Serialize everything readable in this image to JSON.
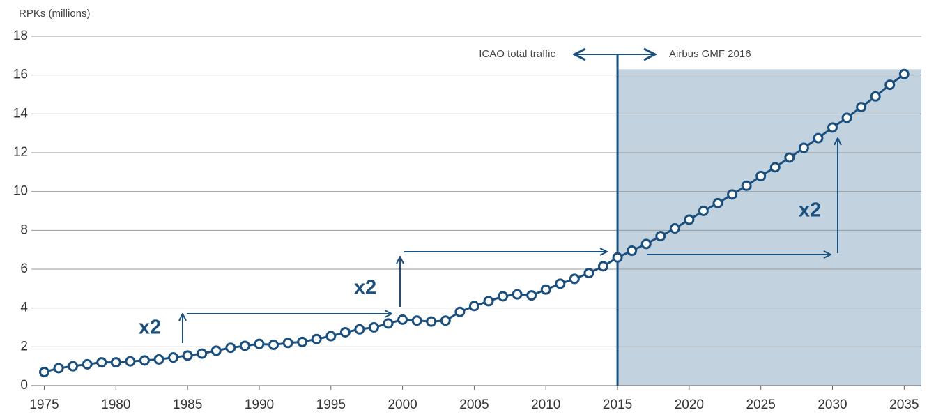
{
  "chart_data": {
    "type": "line",
    "y_label": "RPKs (millions)",
    "x": [
      1975,
      1976,
      1977,
      1978,
      1979,
      1980,
      1981,
      1982,
      1983,
      1984,
      1985,
      1986,
      1987,
      1988,
      1989,
      1990,
      1991,
      1992,
      1993,
      1994,
      1995,
      1996,
      1997,
      1998,
      1999,
      2000,
      2001,
      2002,
      2003,
      2004,
      2005,
      2006,
      2007,
      2008,
      2009,
      2010,
      2011,
      2012,
      2013,
      2014,
      2015,
      2016,
      2017,
      2018,
      2019,
      2020,
      2021,
      2022,
      2023,
      2024,
      2025,
      2026,
      2027,
      2028,
      2029,
      2030,
      2031,
      2032,
      2033,
      2034,
      2035
    ],
    "values": [
      0.7,
      0.9,
      1.0,
      1.1,
      1.2,
      1.2,
      1.25,
      1.3,
      1.35,
      1.45,
      1.55,
      1.65,
      1.8,
      1.95,
      2.05,
      2.15,
      2.1,
      2.2,
      2.25,
      2.4,
      2.55,
      2.75,
      2.9,
      3.0,
      3.2,
      3.4,
      3.35,
      3.3,
      3.35,
      3.8,
      4.1,
      4.35,
      4.6,
      4.7,
      4.65,
      4.95,
      5.25,
      5.5,
      5.8,
      6.15,
      6.6,
      6.95,
      7.3,
      7.7,
      8.1,
      8.55,
      9.0,
      9.4,
      9.85,
      10.3,
      10.8,
      11.25,
      11.75,
      12.25,
      12.75,
      13.3,
      13.8,
      14.35,
      14.9,
      15.5,
      16.05
    ],
    "color": "#1a4f7e",
    "xlim": [
      1974.1,
      2036.2
    ],
    "xticks": [
      1975,
      1980,
      1985,
      1990,
      1995,
      2000,
      2005,
      2010,
      2015,
      2020,
      2025,
      2030,
      2035
    ],
    "ylim": [
      0,
      18
    ],
    "yticks": [
      0,
      2,
      4,
      6,
      8,
      10,
      12,
      14,
      16,
      18
    ],
    "grid": true,
    "shade": {
      "from": 2015,
      "top": 16.3,
      "color": "#c2d3df"
    },
    "annotations": [
      "ICAO total traffic",
      "Airbus GMF 2016",
      "x2",
      "x2",
      "x2"
    ]
  }
}
